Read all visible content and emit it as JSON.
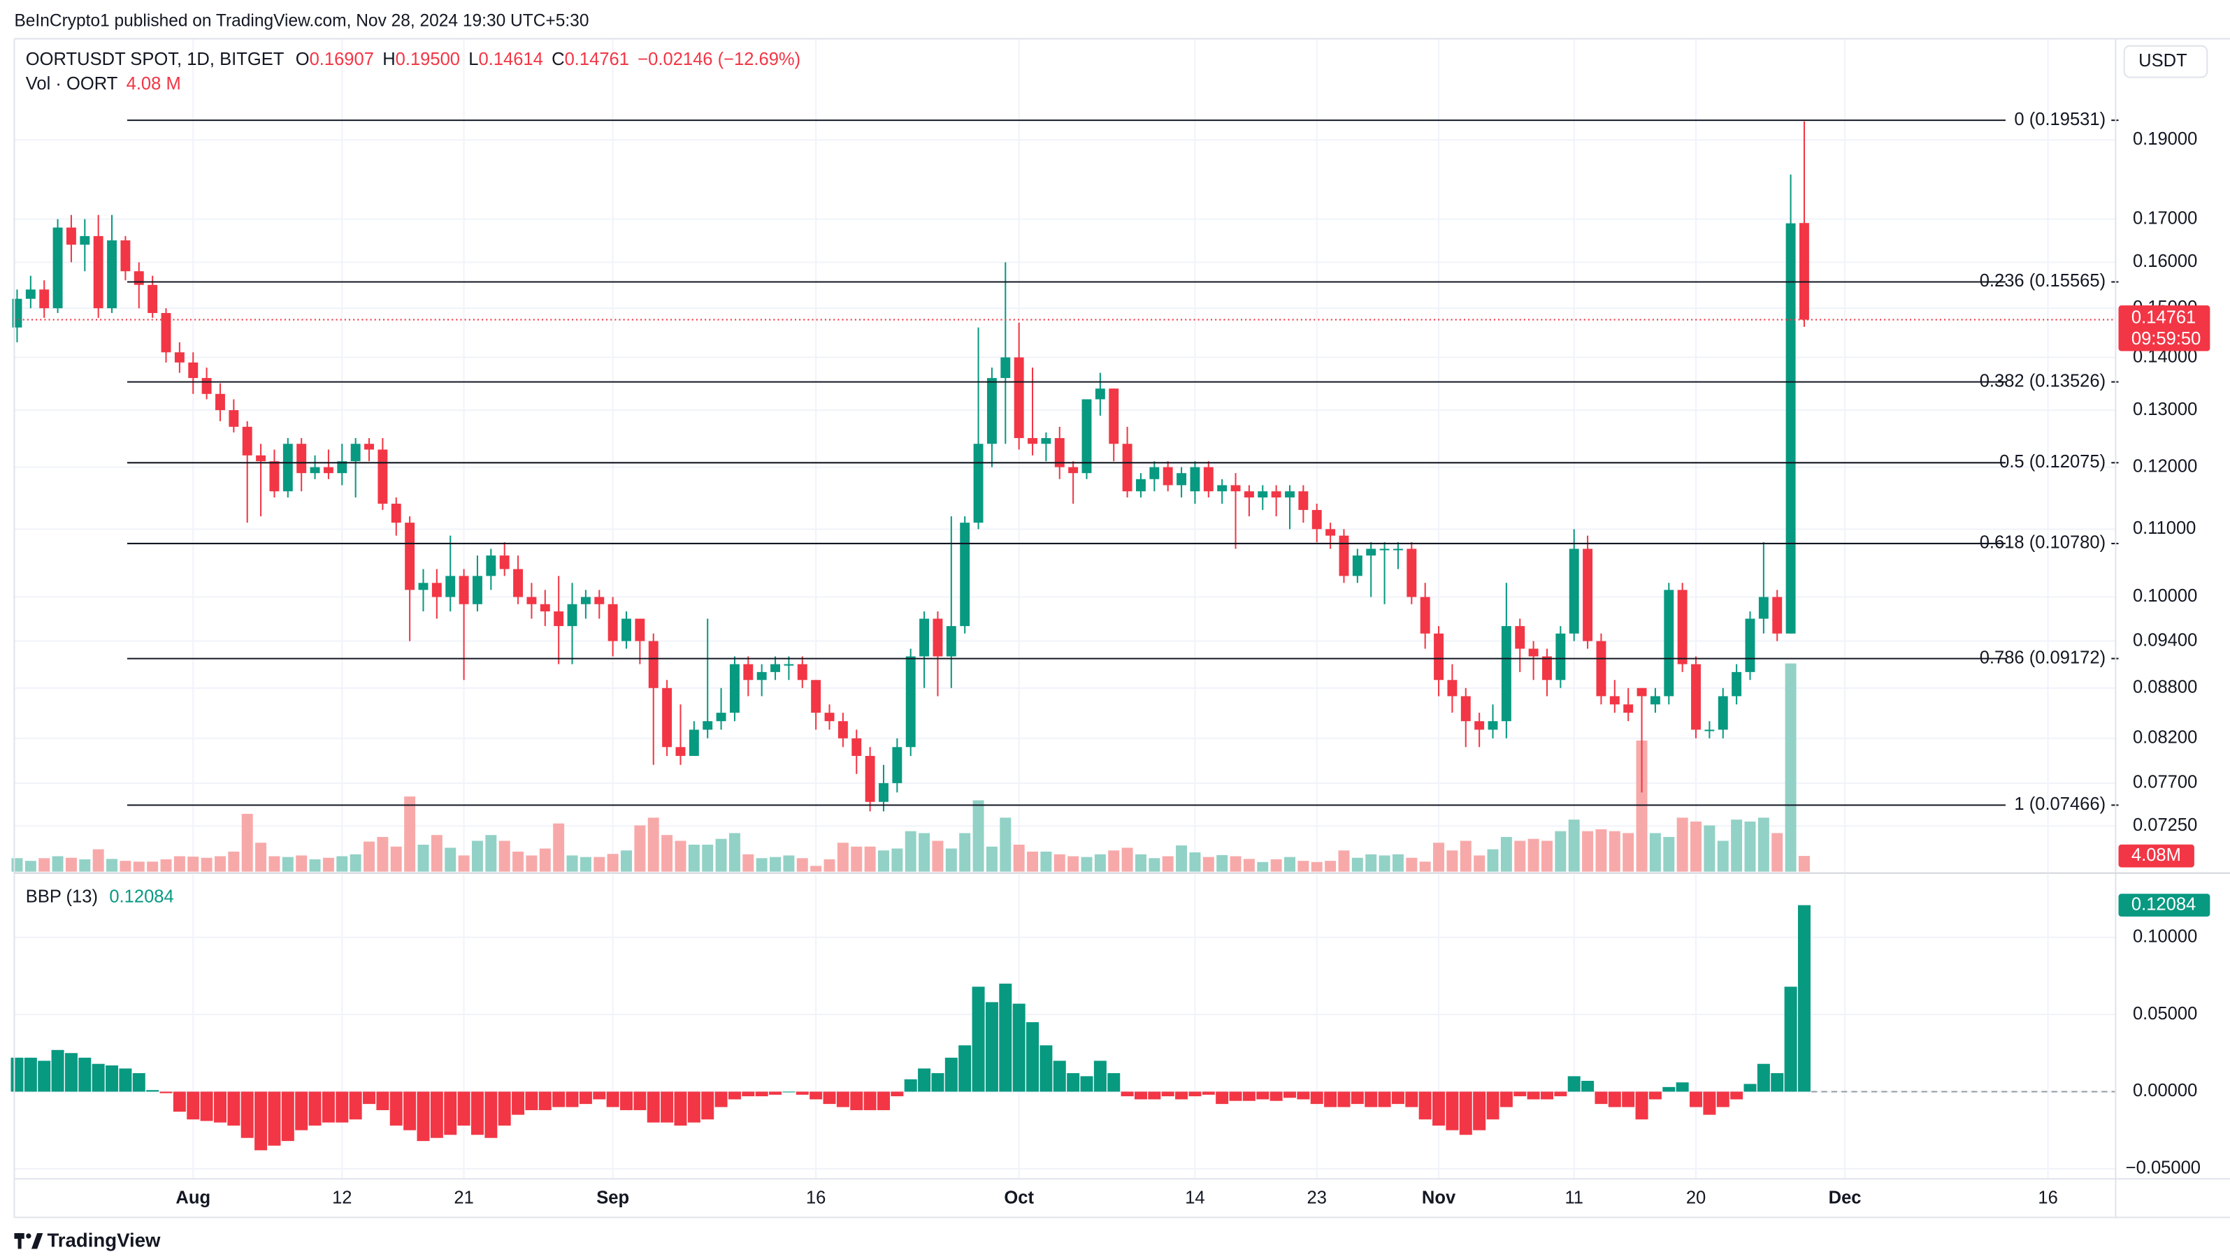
{
  "header": {
    "publisher": "BeInCrypto1 published on TradingView.com, Nov 28, 2024 19:30 UTC+5:30",
    "symbol": "OORTUSDT SPOT, 1D, BITGET",
    "ohlc": [
      {
        "key": "O",
        "value": "0.16907"
      },
      {
        "key": "H",
        "value": "0.19500"
      },
      {
        "key": "L",
        "value": "0.14614"
      },
      {
        "key": "C",
        "value": "0.14761"
      }
    ],
    "change": "−0.02146 (−12.69%)",
    "volume_title": "Vol · OORT",
    "volume_value": "4.08 M",
    "currency": "USDT",
    "logo": "TradingView"
  },
  "chart_data": [
    {
      "type": "candlestick",
      "x": [
        "2024-07-19",
        "2024-07-20",
        "2024-07-21",
        "2024-07-22",
        "2024-07-23",
        "2024-07-24",
        "2024-07-25",
        "2024-07-26",
        "2024-07-27",
        "2024-07-28",
        "2024-07-29",
        "2024-07-30",
        "2024-07-31",
        "2024-08-01",
        "2024-08-02",
        "2024-08-03",
        "2024-08-04",
        "2024-08-05",
        "2024-08-06",
        "2024-08-07",
        "2024-08-08",
        "2024-08-09",
        "2024-08-10",
        "2024-08-11",
        "2024-08-12",
        "2024-08-13",
        "2024-08-14",
        "2024-08-15",
        "2024-08-16",
        "2024-08-17",
        "2024-08-18",
        "2024-08-19",
        "2024-08-20",
        "2024-08-21",
        "2024-08-22",
        "2024-08-23",
        "2024-08-24",
        "2024-08-25",
        "2024-08-26",
        "2024-08-27",
        "2024-08-28",
        "2024-08-29",
        "2024-08-30",
        "2024-08-31",
        "2024-09-01",
        "2024-09-02",
        "2024-09-03",
        "2024-09-04",
        "2024-09-05",
        "2024-09-06",
        "2024-09-07",
        "2024-09-08",
        "2024-09-09",
        "2024-09-10",
        "2024-09-11",
        "2024-09-12",
        "2024-09-13",
        "2024-09-14",
        "2024-09-15",
        "2024-09-16",
        "2024-09-17",
        "2024-09-18",
        "2024-09-19",
        "2024-09-20",
        "2024-09-21",
        "2024-09-22",
        "2024-09-23",
        "2024-09-24",
        "2024-09-25",
        "2024-09-26",
        "2024-09-27",
        "2024-09-28",
        "2024-09-29",
        "2024-09-30",
        "2024-10-01",
        "2024-10-02",
        "2024-10-03",
        "2024-10-04",
        "2024-10-05",
        "2024-10-06",
        "2024-10-07",
        "2024-10-08",
        "2024-10-09",
        "2024-10-10",
        "2024-10-11",
        "2024-10-12",
        "2024-10-13",
        "2024-10-14",
        "2024-10-15",
        "2024-10-16",
        "2024-10-17",
        "2024-10-18",
        "2024-10-19",
        "2024-10-20",
        "2024-10-21",
        "2024-10-22",
        "2024-10-23",
        "2024-10-24",
        "2024-10-25",
        "2024-10-26",
        "2024-10-27",
        "2024-10-28",
        "2024-10-29",
        "2024-10-30",
        "2024-10-31",
        "2024-11-01",
        "2024-11-02",
        "2024-11-03",
        "2024-11-04",
        "2024-11-05",
        "2024-11-06",
        "2024-11-07",
        "2024-11-08",
        "2024-11-09",
        "2024-11-10",
        "2024-11-11",
        "2024-11-12",
        "2024-11-13",
        "2024-11-14",
        "2024-11-15",
        "2024-11-16",
        "2024-11-17",
        "2024-11-18",
        "2024-11-19",
        "2024-11-20",
        "2024-11-21",
        "2024-11-22",
        "2024-11-23",
        "2024-11-24",
        "2024-11-25",
        "2024-11-26",
        "2024-11-27",
        "2024-11-28"
      ],
      "open": [
        0.146,
        0.152,
        0.154,
        0.15,
        0.168,
        0.164,
        0.166,
        0.15,
        0.165,
        0.158,
        0.155,
        0.149,
        0.141,
        0.139,
        0.136,
        0.133,
        0.13,
        0.127,
        0.122,
        0.121,
        0.116,
        0.124,
        0.119,
        0.12,
        0.119,
        0.121,
        0.124,
        0.123,
        0.114,
        0.111,
        0.101,
        0.102,
        0.1,
        0.103,
        0.099,
        0.103,
        0.106,
        0.104,
        0.1,
        0.099,
        0.098,
        0.096,
        0.099,
        0.1,
        0.099,
        0.094,
        0.097,
        0.094,
        0.088,
        0.081,
        0.08,
        0.083,
        0.084,
        0.085,
        0.091,
        0.089,
        0.09,
        0.091,
        0.091,
        0.089,
        0.085,
        0.084,
        0.082,
        0.08,
        0.075,
        0.077,
        0.081,
        0.092,
        0.097,
        0.092,
        0.096,
        0.111,
        0.124,
        0.136,
        0.14,
        0.125,
        0.124,
        0.125,
        0.12,
        0.119,
        0.132,
        0.134,
        0.124,
        0.116,
        0.118,
        0.12,
        0.117,
        0.116,
        0.12,
        0.116,
        0.117,
        0.116,
        0.115,
        0.116,
        0.115,
        0.116,
        0.113,
        0.11,
        0.109,
        0.103,
        0.106,
        0.107,
        0.107,
        0.107,
        0.1,
        0.095,
        0.089,
        0.087,
        0.084,
        0.083,
        0.084,
        0.096,
        0.093,
        0.092,
        0.089,
        0.095,
        0.107,
        0.094,
        0.087,
        0.086,
        0.088,
        0.086,
        0.087,
        0.101,
        0.091,
        0.083,
        0.083,
        0.087,
        0.09,
        0.097,
        0.1,
        0.095,
        0.16907
      ],
      "high": [
        0.154,
        0.157,
        0.156,
        0.17,
        0.171,
        0.17,
        0.171,
        0.171,
        0.166,
        0.16,
        0.157,
        0.15,
        0.143,
        0.141,
        0.138,
        0.135,
        0.132,
        0.128,
        0.124,
        0.123,
        0.125,
        0.125,
        0.122,
        0.123,
        0.124,
        0.125,
        0.125,
        0.125,
        0.115,
        0.112,
        0.104,
        0.104,
        0.109,
        0.104,
        0.106,
        0.107,
        0.108,
        0.106,
        0.102,
        0.101,
        0.103,
        0.102,
        0.101,
        0.101,
        0.1,
        0.098,
        0.097,
        0.095,
        0.089,
        0.086,
        0.084,
        0.097,
        0.088,
        0.092,
        0.092,
        0.091,
        0.092,
        0.092,
        0.092,
        0.089,
        0.086,
        0.085,
        0.083,
        0.081,
        0.079,
        0.082,
        0.093,
        0.098,
        0.098,
        0.112,
        0.112,
        0.146,
        0.138,
        0.16,
        0.147,
        0.138,
        0.126,
        0.127,
        0.121,
        0.132,
        0.137,
        0.134,
        0.127,
        0.119,
        0.121,
        0.121,
        0.12,
        0.121,
        0.121,
        0.118,
        0.119,
        0.117,
        0.117,
        0.117,
        0.117,
        0.117,
        0.114,
        0.111,
        0.11,
        0.107,
        0.108,
        0.108,
        0.108,
        0.108,
        0.102,
        0.096,
        0.091,
        0.088,
        0.085,
        0.086,
        0.102,
        0.097,
        0.094,
        0.093,
        0.096,
        0.11,
        0.109,
        0.095,
        0.089,
        0.088,
        0.088,
        0.088,
        0.102,
        0.102,
        0.092,
        0.084,
        0.088,
        0.091,
        0.098,
        0.108,
        0.101,
        0.181,
        0.195
      ],
      "low": [
        0.143,
        0.15,
        0.148,
        0.149,
        0.16,
        0.158,
        0.148,
        0.149,
        0.156,
        0.15,
        0.148,
        0.139,
        0.137,
        0.133,
        0.132,
        0.128,
        0.126,
        0.111,
        0.112,
        0.115,
        0.115,
        0.116,
        0.118,
        0.118,
        0.117,
        0.115,
        0.121,
        0.113,
        0.109,
        0.094,
        0.098,
        0.097,
        0.098,
        0.089,
        0.098,
        0.101,
        0.103,
        0.099,
        0.097,
        0.096,
        0.091,
        0.091,
        0.097,
        0.097,
        0.092,
        0.093,
        0.091,
        0.079,
        0.08,
        0.079,
        0.08,
        0.082,
        0.083,
        0.084,
        0.087,
        0.087,
        0.089,
        0.089,
        0.088,
        0.083,
        0.083,
        0.081,
        0.078,
        0.074,
        0.074,
        0.076,
        0.08,
        0.088,
        0.087,
        0.088,
        0.095,
        0.11,
        0.12,
        0.124,
        0.123,
        0.122,
        0.121,
        0.118,
        0.114,
        0.118,
        0.129,
        0.121,
        0.115,
        0.115,
        0.116,
        0.116,
        0.115,
        0.114,
        0.115,
        0.114,
        0.107,
        0.112,
        0.113,
        0.112,
        0.11,
        0.111,
        0.108,
        0.107,
        0.102,
        0.102,
        0.1,
        0.099,
        0.104,
        0.099,
        0.093,
        0.087,
        0.085,
        0.081,
        0.081,
        0.082,
        0.082,
        0.09,
        0.089,
        0.087,
        0.088,
        0.094,
        0.093,
        0.086,
        0.085,
        0.084,
        0.076,
        0.085,
        0.086,
        0.09,
        0.082,
        0.082,
        0.082,
        0.086,
        0.089,
        0.095,
        0.094,
        0.095,
        0.14614
      ],
      "close": [
        0.152,
        0.154,
        0.15,
        0.168,
        0.164,
        0.166,
        0.15,
        0.165,
        0.158,
        0.155,
        0.149,
        0.141,
        0.139,
        0.136,
        0.133,
        0.13,
        0.127,
        0.122,
        0.121,
        0.116,
        0.124,
        0.119,
        0.12,
        0.119,
        0.121,
        0.124,
        0.123,
        0.114,
        0.111,
        0.101,
        0.102,
        0.1,
        0.103,
        0.099,
        0.103,
        0.106,
        0.104,
        0.1,
        0.099,
        0.098,
        0.096,
        0.099,
        0.1,
        0.099,
        0.094,
        0.097,
        0.094,
        0.088,
        0.081,
        0.08,
        0.083,
        0.084,
        0.085,
        0.091,
        0.089,
        0.09,
        0.091,
        0.091,
        0.089,
        0.085,
        0.084,
        0.082,
        0.08,
        0.075,
        0.077,
        0.081,
        0.092,
        0.097,
        0.092,
        0.096,
        0.111,
        0.124,
        0.136,
        0.14,
        0.125,
        0.124,
        0.125,
        0.12,
        0.119,
        0.132,
        0.134,
        0.124,
        0.116,
        0.118,
        0.12,
        0.117,
        0.119,
        0.12,
        0.116,
        0.117,
        0.116,
        0.115,
        0.116,
        0.115,
        0.116,
        0.113,
        0.11,
        0.109,
        0.103,
        0.106,
        0.107,
        0.107,
        0.107,
        0.1,
        0.095,
        0.089,
        0.087,
        0.084,
        0.083,
        0.084,
        0.096,
        0.093,
        0.092,
        0.089,
        0.095,
        0.107,
        0.094,
        0.087,
        0.086,
        0.085,
        0.087,
        0.087,
        0.101,
        0.091,
        0.083,
        0.083,
        0.087,
        0.09,
        0.097,
        0.1,
        0.095,
        0.169,
        0.14761
      ],
      "up_color": "#089981",
      "down_color": "#f23645",
      "log_scale": true,
      "ylim": [
        0.068,
        0.219
      ],
      "yticks": [
        {
          "value": 0.19,
          "label": "0.19000"
        },
        {
          "value": 0.17,
          "label": "0.17000"
        },
        {
          "value": 0.16,
          "label": "0.16000"
        },
        {
          "value": 0.15,
          "label": "0.15000"
        },
        {
          "value": 0.14,
          "label": "0.14000"
        },
        {
          "value": 0.13,
          "label": "0.13000"
        },
        {
          "value": 0.12,
          "label": "0.12000"
        },
        {
          "value": 0.11,
          "label": "0.11000"
        },
        {
          "value": 0.1,
          "label": "0.10000"
        },
        {
          "value": 0.094,
          "label": "0.09400"
        },
        {
          "value": 0.088,
          "label": "0.08800"
        },
        {
          "value": 0.082,
          "label": "0.08200"
        },
        {
          "value": 0.077,
          "label": "0.07700"
        },
        {
          "value": 0.0725,
          "label": "0.07250"
        }
      ],
      "xlim": [
        "2024-07-18",
        "2024-12-21"
      ],
      "xticks": [
        {
          "value": "2024-08-01",
          "label": "Aug"
        },
        {
          "value": "2024-08-12",
          "label": "12"
        },
        {
          "value": "2024-08-21",
          "label": "21"
        },
        {
          "value": "2024-09-01",
          "label": "Sep"
        },
        {
          "value": "2024-09-16",
          "label": "16"
        },
        {
          "value": "2024-10-01",
          "label": "Oct"
        },
        {
          "value": "2024-10-14",
          "label": "14"
        },
        {
          "value": "2024-10-23",
          "label": "23"
        },
        {
          "value": "2024-11-01",
          "label": "Nov"
        },
        {
          "value": "2024-11-11",
          "label": "11"
        },
        {
          "value": "2024-11-20",
          "label": "20"
        },
        {
          "value": "2024-12-01",
          "label": "Dec"
        },
        {
          "value": "2024-12-16",
          "label": "16"
        }
      ],
      "grid": true,
      "fib_levels": [
        {
          "value": 0.19531,
          "label": "0 (0.19531)"
        },
        {
          "value": 0.15565,
          "label": "0.236 (0.15565)"
        },
        {
          "value": 0.13526,
          "label": "0.382 (0.13526)"
        },
        {
          "value": 0.12075,
          "label": "0.5 (0.12075)"
        },
        {
          "value": 0.1078,
          "label": "0.618 (0.10780)"
        },
        {
          "value": 0.09172,
          "label": "0.786 (0.09172)"
        },
        {
          "value": 0.07466,
          "label": "1 (0.07466)"
        }
      ],
      "fib_color": "#131722",
      "countdown": "09:59:50"
    },
    {
      "type": "volume",
      "values": [
        3.5,
        2.8,
        3.5,
        4.0,
        3.6,
        3.2,
        5.8,
        3.3,
        2.8,
        2.6,
        2.6,
        3.2,
        4.0,
        3.9,
        3.6,
        4.0,
        5.2,
        15.0,
        7.5,
        4.0,
        3.8,
        4.2,
        3.2,
        3.6,
        4.0,
        4.5,
        7.8,
        9.0,
        6.5,
        19.5,
        7.0,
        9.5,
        6.2,
        4.2,
        8.0,
        9.5,
        8.0,
        5.2,
        4.2,
        6.0,
        12.5,
        4.2,
        3.8,
        3.8,
        4.6,
        5.5,
        12.0,
        14.0,
        9.5,
        8.0,
        7.0,
        7.0,
        8.5,
        10.0,
        4.5,
        3.5,
        3.8,
        4.2,
        3.5,
        1.5,
        3.2,
        7.5,
        6.5,
        6.5,
        5.5,
        6.0,
        10.5,
        10.0,
        8.0,
        6.0,
        10.0,
        18.5,
        6.5,
        14.0,
        7.0,
        5.2,
        5.2,
        4.5,
        4.0,
        3.8,
        4.5,
        5.5,
        6.2,
        4.5,
        3.5,
        4.0,
        6.8,
        5.0,
        3.8,
        4.3,
        4.0,
        3.3,
        2.5,
        3.2,
        3.8,
        2.8,
        2.5,
        2.8,
        5.5,
        3.6,
        4.5,
        4.2,
        4.5,
        3.6,
        2.6,
        7.5,
        5.5,
        8.0,
        4.2,
        5.8,
        9.0,
        8.0,
        8.5,
        8.0,
        10.5,
        13.5,
        10.5,
        11.0,
        10.5,
        10.0,
        34.0,
        10.0,
        9.0,
        14.0,
        13.0,
        12.0,
        8.0,
        13.5,
        13.0,
        14.0,
        10.0,
        54.0,
        4.08
      ],
      "last_label": "4.08M",
      "up_color": "#92d1c6",
      "down_color": "#f7a9a9",
      "tag_color": "#f23645",
      "ylim": [
        0,
        216
      ]
    },
    {
      "type": "bar",
      "title": "BBP (13)",
      "values": [
        0.022,
        0.022,
        0.02,
        0.027,
        0.025,
        0.022,
        0.018,
        0.017,
        0.015,
        0.012,
        0.001,
        -0.001,
        -0.013,
        -0.018,
        -0.019,
        -0.02,
        -0.022,
        -0.03,
        -0.038,
        -0.035,
        -0.032,
        -0.025,
        -0.022,
        -0.02,
        -0.02,
        -0.018,
        -0.008,
        -0.012,
        -0.022,
        -0.025,
        -0.032,
        -0.03,
        -0.028,
        -0.022,
        -0.028,
        -0.03,
        -0.022,
        -0.015,
        -0.012,
        -0.012,
        -0.01,
        -0.01,
        -0.008,
        -0.005,
        -0.01,
        -0.012,
        -0.012,
        -0.02,
        -0.02,
        -0.022,
        -0.02,
        -0.018,
        -0.01,
        -0.005,
        -0.003,
        -0.003,
        -0.002,
        0.0,
        -0.002,
        -0.005,
        -0.008,
        -0.01,
        -0.012,
        -0.012,
        -0.012,
        -0.003,
        0.008,
        0.015,
        0.012,
        0.022,
        0.03,
        0.068,
        0.058,
        0.07,
        0.057,
        0.045,
        0.03,
        0.02,
        0.012,
        0.01,
        0.02,
        0.012,
        -0.003,
        -0.005,
        -0.005,
        -0.003,
        -0.005,
        -0.003,
        -0.002,
        -0.008,
        -0.006,
        -0.006,
        -0.005,
        -0.006,
        -0.004,
        -0.005,
        -0.008,
        -0.01,
        -0.01,
        -0.008,
        -0.01,
        -0.01,
        -0.008,
        -0.01,
        -0.018,
        -0.022,
        -0.025,
        -0.028,
        -0.025,
        -0.018,
        -0.01,
        -0.003,
        -0.005,
        -0.005,
        -0.003,
        0.01,
        0.007,
        -0.008,
        -0.01,
        -0.01,
        -0.018,
        -0.005,
        0.003,
        0.006,
        -0.01,
        -0.015,
        -0.01,
        -0.005,
        0.005,
        0.018,
        0.012,
        0.068,
        0.12084
      ],
      "up_color": "#089981",
      "down_color": "#f23645",
      "ylim": [
        -0.0565,
        0.1407
      ],
      "yticks": [
        {
          "value": 0.1,
          "label": "0.10000"
        },
        {
          "value": 0.05,
          "label": "0.05000"
        },
        {
          "value": 0,
          "label": "0.00000"
        },
        {
          "value": -0.05,
          "label": "−0.05000"
        }
      ],
      "grid": true
    }
  ]
}
